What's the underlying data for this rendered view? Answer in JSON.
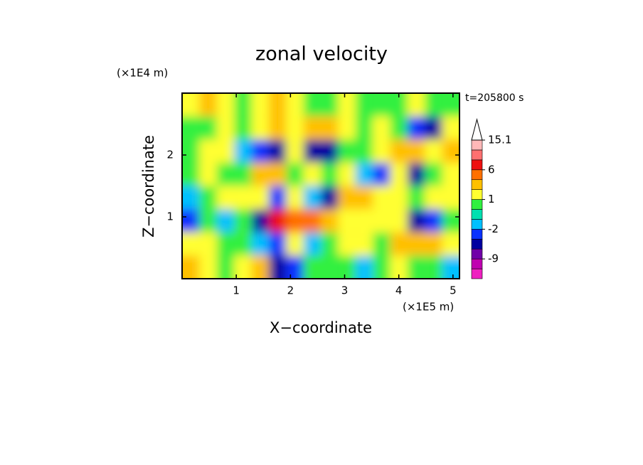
{
  "chart_data": {
    "type": "contour",
    "title": "zonal velocity",
    "time_label": "t=205800 s",
    "xlabel": "X−coordinate",
    "ylabel": "Z−coordinate",
    "x_unit": "(×1E5 m)",
    "y_unit": "(×1E4 m)",
    "xlim": [
      0,
      5.12
    ],
    "ylim": [
      0,
      3
    ],
    "xticks": [
      1,
      2,
      3,
      4,
      5
    ],
    "yticks": [
      1,
      2
    ],
    "x": [
      0.16,
      0.48,
      0.8,
      1.12,
      1.44,
      1.76,
      2.08,
      2.4,
      2.72,
      3.04,
      3.36,
      3.68,
      4.0,
      4.32,
      4.64,
      4.96
    ],
    "y": [
      0.1875,
      0.5625,
      0.9375,
      1.3125,
      1.6875,
      2.0625,
      2.4375,
      2.8125
    ],
    "z": [
      [
        3,
        1.5,
        0.5,
        1.5,
        3,
        -5,
        -3,
        0.5,
        0.5,
        0.5,
        -1.5,
        0.5,
        1.5,
        0.5,
        0.5,
        -1.5
      ],
      [
        1.5,
        1.5,
        0.5,
        0.5,
        -1.5,
        -3,
        1.5,
        -1.5,
        0.5,
        1.5,
        1.5,
        0.5,
        3,
        3,
        3,
        1.5
      ],
      [
        -3,
        0.5,
        -1.5,
        0.5,
        -5,
        7,
        5,
        5,
        3,
        1.5,
        1.5,
        1.5,
        1.5,
        -5,
        -3,
        0.5
      ],
      [
        -1.5,
        0.5,
        1.5,
        1.5,
        1.5,
        -3,
        1.5,
        -1.5,
        -5,
        3,
        3,
        1.5,
        1.5,
        0.5,
        1.5,
        1.5
      ],
      [
        0.5,
        1.5,
        0.5,
        0.5,
        3,
        3,
        0.5,
        1.5,
        0.5,
        1.5,
        -1.5,
        -3,
        1.5,
        -5,
        0.5,
        1.5
      ],
      [
        0.5,
        1.5,
        1.5,
        -1.5,
        -3,
        -5,
        1.5,
        -5,
        -5,
        0.5,
        0.5,
        1.5,
        3,
        3,
        1.5,
        3
      ],
      [
        0.5,
        0.5,
        1.5,
        0.5,
        1.5,
        3,
        1.5,
        3,
        3,
        1.5,
        0.5,
        1.5,
        0.5,
        -3,
        -5,
        1.5
      ],
      [
        1.5,
        3,
        1.5,
        0.5,
        1.5,
        3,
        1.5,
        0.5,
        0.5,
        1.5,
        0.5,
        0.5,
        0.5,
        1.5,
        0.5,
        0.5
      ]
    ],
    "levels": [
      -15,
      -12,
      -9,
      -6,
      -4,
      -2,
      -1,
      0,
      1,
      2,
      4,
      6,
      9,
      12,
      15.1
    ],
    "colors": [
      "#ee20c0",
      "#c000b0",
      "#7000a8",
      "#0000a0",
      "#0a32ff",
      "#00c0ff",
      "#00e0b0",
      "#30f040",
      "#ffff30",
      "#ffc000",
      "#ff7000",
      "#ee1010",
      "#ff7070",
      "#ffb8b8"
    ],
    "over_color": "#ffffff",
    "cbar_ticks": [
      15.1,
      6,
      1,
      -2,
      -9
    ]
  }
}
